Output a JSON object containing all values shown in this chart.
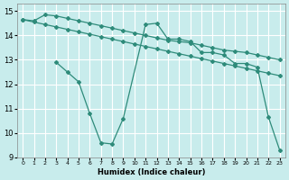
{
  "xlabel": "Humidex (Indice chaleur)",
  "bg_color": "#c8ecec",
  "grid_color": "#ffffff",
  "line_color": "#2e8b7a",
  "xlim": [
    -0.5,
    23.5
  ],
  "ylim": [
    9,
    15.3
  ],
  "yticks": [
    9,
    10,
    11,
    12,
    13,
    14,
    15
  ],
  "xticks": [
    0,
    1,
    2,
    3,
    4,
    5,
    6,
    7,
    8,
    9,
    10,
    11,
    12,
    13,
    14,
    15,
    16,
    17,
    18,
    19,
    20,
    21,
    22,
    23
  ],
  "series1_x": [
    0,
    1,
    2,
    3,
    4,
    5,
    6,
    7,
    8,
    9,
    10,
    11,
    12,
    13,
    14,
    15,
    16,
    17,
    18,
    19,
    20,
    21,
    22,
    23
  ],
  "series1_y": [
    14.65,
    14.6,
    14.85,
    14.8,
    14.7,
    14.6,
    14.5,
    14.4,
    14.3,
    14.2,
    14.1,
    14.0,
    13.9,
    13.8,
    13.75,
    13.7,
    13.6,
    13.5,
    13.4,
    13.35,
    13.3,
    13.2,
    13.1,
    13.0
  ],
  "series2_x": [
    0,
    1,
    2,
    3,
    4,
    5,
    6,
    7,
    8,
    9,
    10,
    11,
    12,
    13,
    14,
    15,
    16,
    17,
    18,
    19,
    20,
    21,
    22,
    23
  ],
  "series2_y": [
    14.65,
    14.55,
    14.45,
    14.35,
    14.25,
    14.15,
    14.05,
    13.95,
    13.85,
    13.75,
    13.65,
    13.55,
    13.45,
    13.35,
    13.25,
    13.15,
    13.05,
    12.95,
    12.85,
    12.75,
    12.65,
    12.55,
    12.45,
    12.35
  ],
  "series3_x": [
    3,
    4,
    5,
    6,
    7,
    8,
    9,
    11,
    12,
    13,
    14,
    15,
    16,
    17,
    18,
    19,
    20,
    21,
    22,
    23
  ],
  "series3_y": [
    12.9,
    12.5,
    12.1,
    10.8,
    9.6,
    9.55,
    10.6,
    14.45,
    14.5,
    13.85,
    13.85,
    13.75,
    13.3,
    13.3,
    13.2,
    12.85,
    12.85,
    12.7,
    10.65,
    9.3
  ]
}
